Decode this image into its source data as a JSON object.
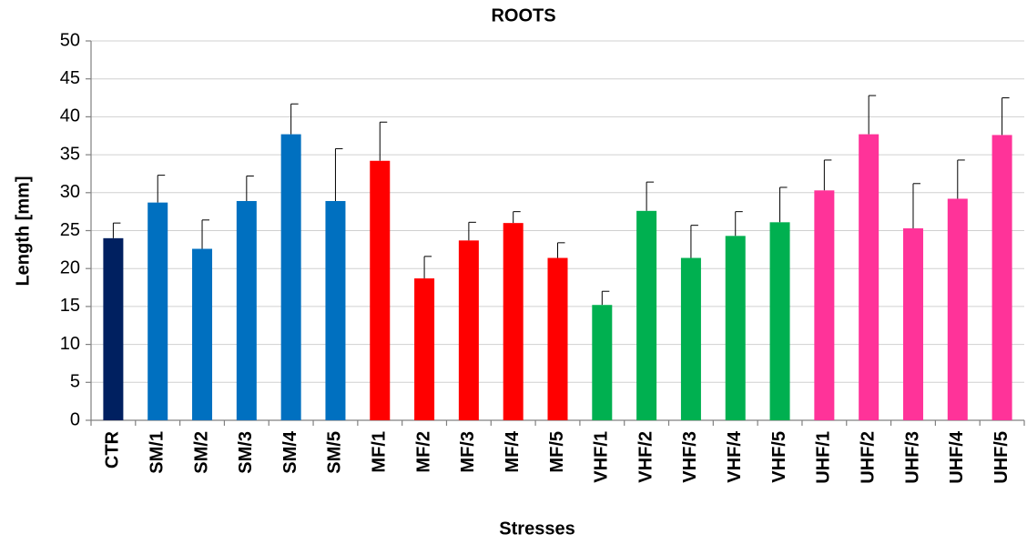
{
  "chart_data": {
    "type": "bar",
    "title": "ROOTS",
    "x_label": "Stresses",
    "y_label": "Length [mm]",
    "categories": [
      "CTR",
      "SM/1",
      "SM/2",
      "SM/3",
      "SM/4",
      "SM/5",
      "MF/1",
      "MF/2",
      "MF/3",
      "MF/4",
      "MF/5",
      "VHF/1",
      "VHF/2",
      "VHF/3",
      "VHF/4",
      "VHF/5",
      "UHF/1",
      "UHF/2",
      "UHF/3",
      "UHF/4",
      "UHF/5"
    ],
    "values": [
      24,
      28.7,
      22.6,
      28.9,
      37.7,
      28.9,
      34.2,
      18.7,
      23.7,
      26,
      21.4,
      15.2,
      27.6,
      21.4,
      24.3,
      26.1,
      30.3,
      37.7,
      25.3,
      29.2,
      37.6
    ],
    "errors": [
      2,
      3.6,
      3.8,
      3.3,
      4,
      6.9,
      5.1,
      2.9,
      2.4,
      1.5,
      2,
      1.8,
      3.8,
      4.3,
      3.2,
      4.6,
      4,
      5.1,
      5.9,
      5.1,
      4.9
    ],
    "colors": [
      "#002060",
      "#0070c0",
      "#0070c0",
      "#0070c0",
      "#0070c0",
      "#0070c0",
      "#ff0000",
      "#ff0000",
      "#ff0000",
      "#ff0000",
      "#ff0000",
      "#00b050",
      "#00b050",
      "#00b050",
      "#00b050",
      "#00b050",
      "#ff3399",
      "#ff3399",
      "#ff3399",
      "#ff3399",
      "#ff3399"
    ],
    "ylim": [
      0,
      50
    ],
    "yticks": [
      0,
      5,
      10,
      15,
      20,
      25,
      30,
      35,
      40,
      45,
      50
    ],
    "grid": true
  }
}
